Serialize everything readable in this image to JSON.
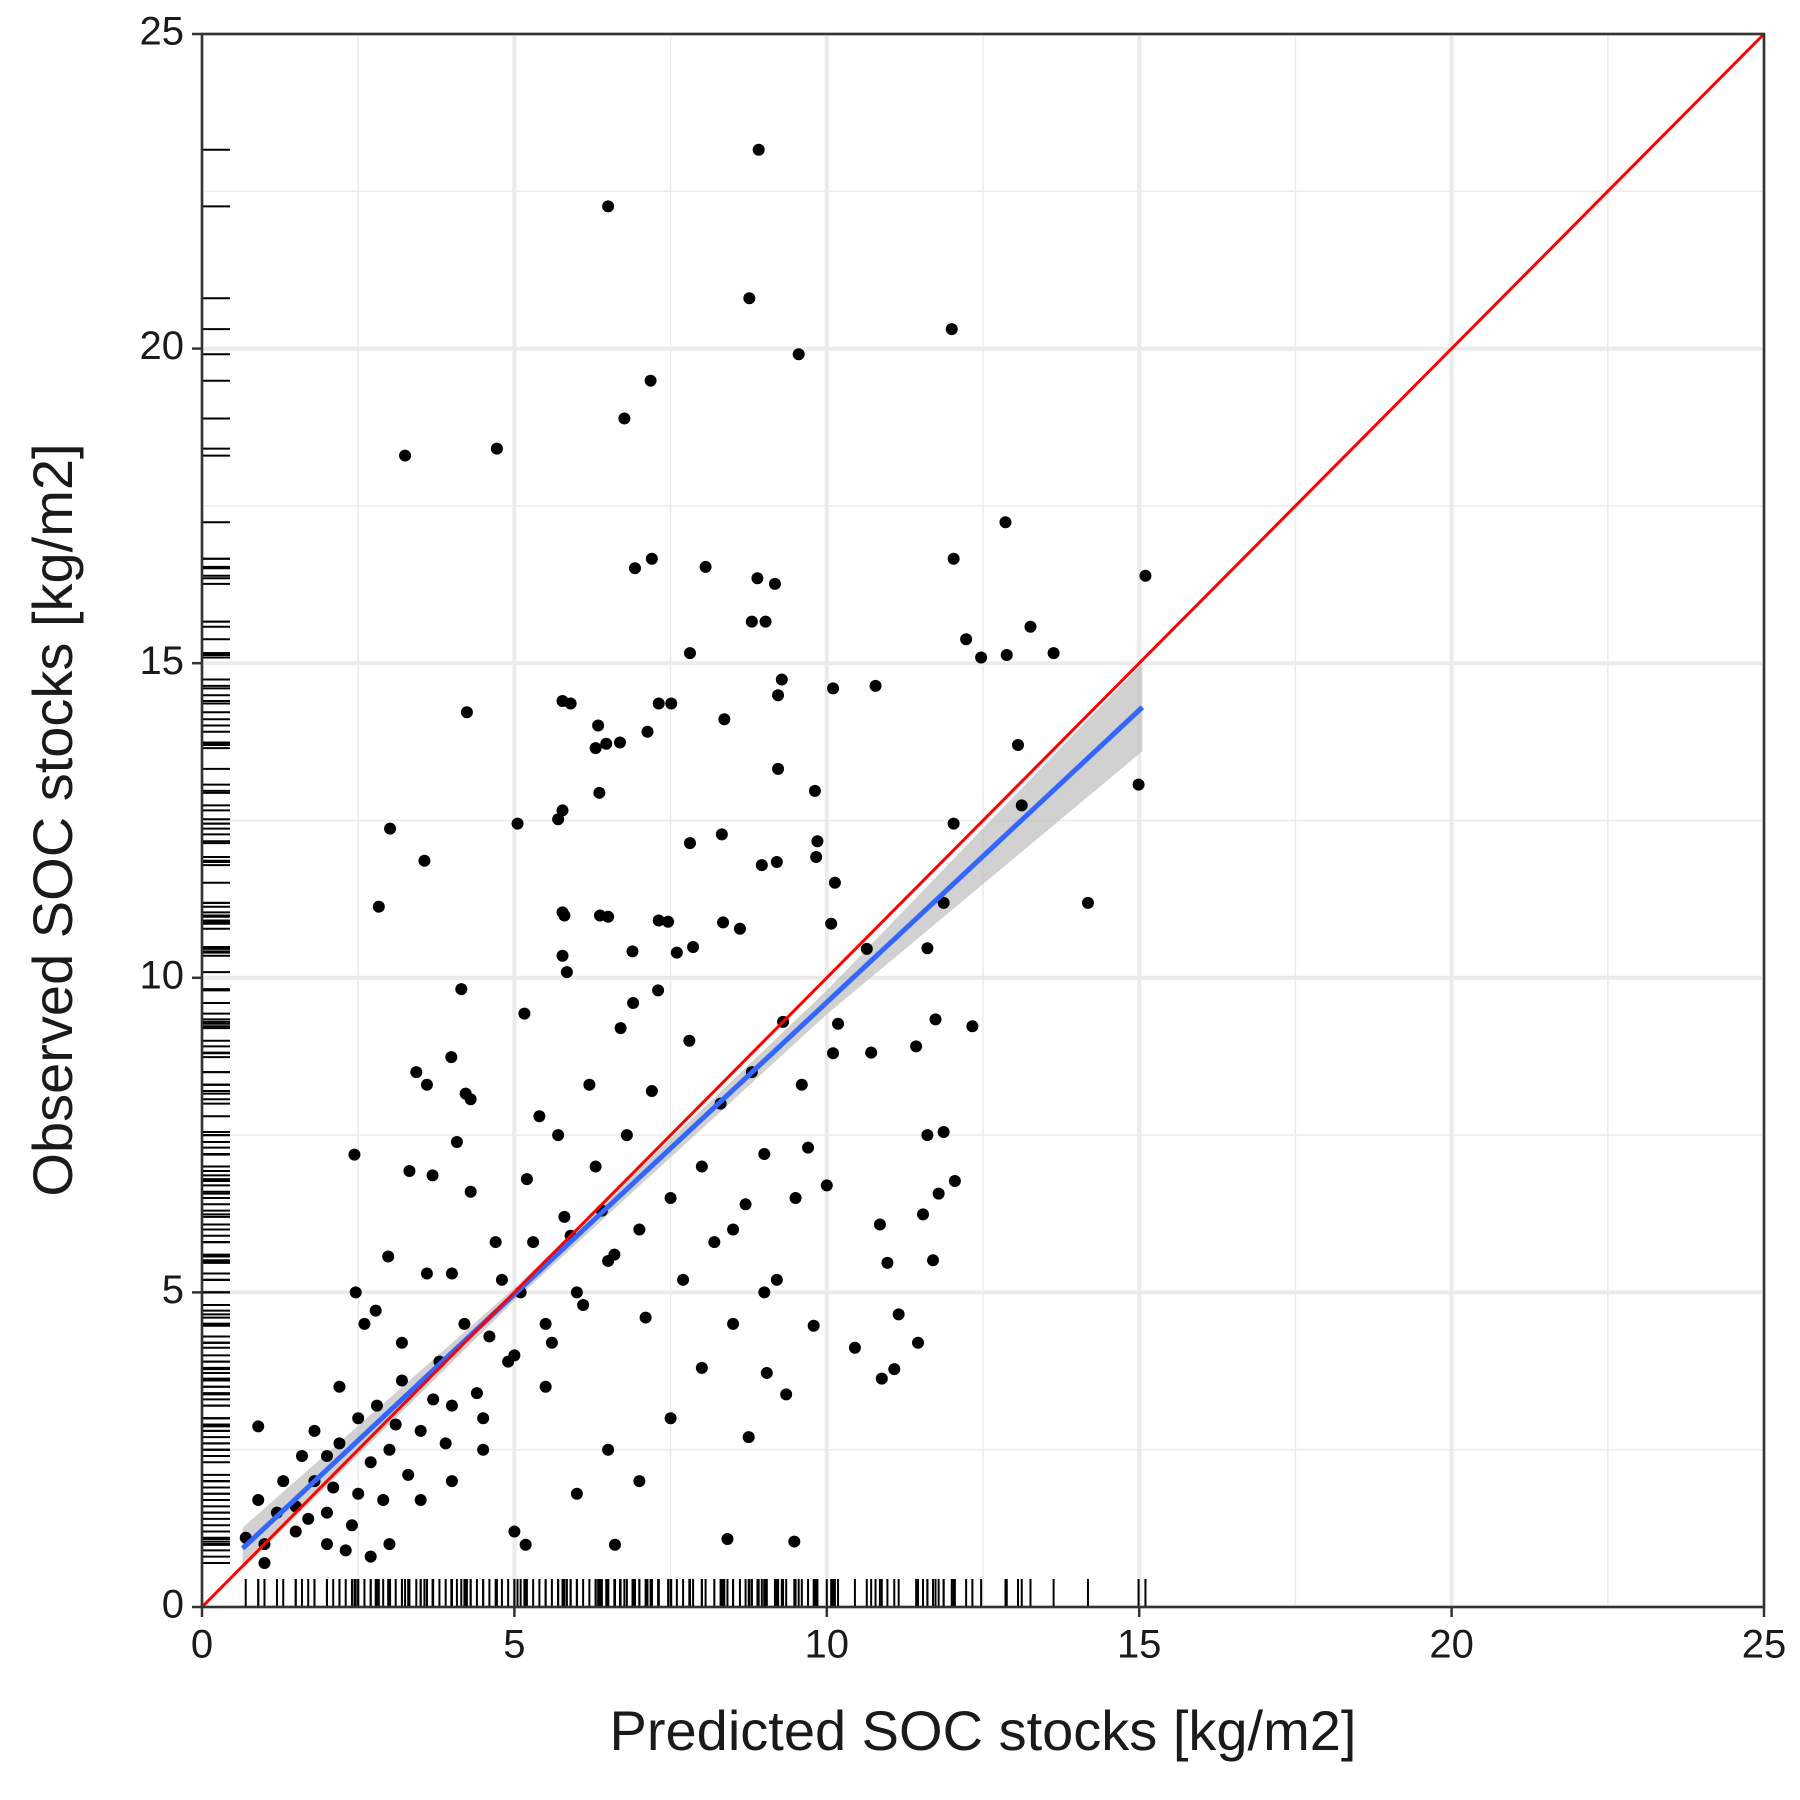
{
  "chart_data": {
    "type": "scatter",
    "x_label": "Predicted SOC stocks [kg/m2]",
    "y_label": "Observed SOC stocks [kg/m2]",
    "xlim": [
      0,
      25
    ],
    "ylim": [
      0,
      25
    ],
    "xticks": [
      0,
      5,
      10,
      15,
      20,
      25
    ],
    "yticks": [
      0,
      5,
      10,
      15,
      20,
      25
    ],
    "x_minor": [
      2.5,
      7.5,
      12.5,
      17.5,
      22.5
    ],
    "y_minor": [
      2.5,
      7.5,
      12.5,
      17.5,
      22.5
    ],
    "grid": true,
    "rug": true,
    "color": "#000000",
    "x": [
      8.91,
      6.5,
      8.76,
      12.0,
      9.55,
      7.18,
      6.76,
      4.72,
      3.25,
      12.86,
      7.2,
      12.03,
      6.93,
      8.06,
      8.89,
      9.17,
      15.1,
      8.8,
      9.02,
      13.26,
      12.23,
      12.47,
      12.88,
      13.63,
      7.81,
      9.28,
      9.22,
      10.1,
      10.78,
      5.77,
      5.9,
      7.31,
      7.51,
      4.24,
      6.34,
      8.36,
      7.13,
      6.3,
      6.47,
      6.69,
      9.22,
      13.06,
      14.99,
      13.12,
      6.36,
      9.81,
      5.77,
      5.7,
      5.05,
      3.01,
      12.03,
      8.32,
      7.81,
      9.85,
      9.83,
      9.2,
      8.96,
      3.56,
      10.13,
      2.83,
      14.18,
      11.87,
      6.37,
      6.5,
      5.77,
      5.8,
      7.31,
      7.46,
      8.34,
      8.61,
      10.07,
      6.89,
      7.86,
      11.61,
      10.64,
      5.77,
      5.84,
      4.15,
      5.16,
      12.33,
      10.18,
      10.71,
      11.43,
      11.74,
      3.99,
      3.43,
      3.6,
      4.22,
      4.3,
      2.44,
      4.08,
      3.32,
      3.69,
      11.87,
      11.61,
      12.05,
      11.79,
      10.85,
      11.54,
      11.7,
      10.97,
      11.15,
      11.46,
      10.45,
      10.88,
      11.08,
      9.79,
      9.35,
      9.04,
      8.75,
      8.41,
      9.48,
      6.61,
      5.18,
      0.9,
      2.78,
      2.98,
      2.46,
      1.0,
      1.2,
      1.5,
      1.8,
      2.0,
      2.2,
      2.5,
      2.0,
      2.3,
      2.7,
      1.6,
      1.3,
      2.8,
      3.0,
      3.2,
      3.5,
      3.8,
      4.0,
      4.2,
      4.5,
      4.8,
      5.0,
      5.3,
      5.5,
      5.8,
      6.0,
      6.3,
      6.5,
      6.8,
      7.0,
      7.2,
      7.5,
      7.8,
      8.0,
      8.3,
      8.5,
      8.8,
      9.0,
      9.3,
      9.5,
      9.7,
      10.0,
      3.0,
      3.5,
      4.0,
      4.5,
      5.0,
      5.5,
      6.0,
      6.5,
      7.0,
      7.5,
      8.0,
      8.5,
      9.0,
      4.3,
      4.7,
      5.2,
      5.7,
      6.2,
      6.7,
      7.3,
      7.6,
      6.9,
      5.4,
      3.6,
      4.0,
      3.2,
      2.6,
      2.2,
      2.5,
      1.8,
      1.5,
      1.0,
      0.7,
      0.9,
      2.0,
      2.4,
      2.9,
      3.3,
      3.9,
      4.4,
      4.9,
      5.6,
      6.1,
      6.6,
      7.1,
      7.7,
      8.2,
      8.7,
      9.2,
      9.6,
      10.1,
      6.4,
      5.9,
      5.1,
      4.6,
      3.7,
      3.1,
      2.7,
      2.1,
      1.7
    ],
    "values": [
      23.16,
      22.26,
      20.8,
      20.31,
      19.91,
      19.49,
      18.89,
      18.41,
      18.3,
      17.24,
      16.66,
      16.66,
      16.51,
      16.53,
      16.35,
      16.26,
      16.39,
      15.66,
      15.66,
      15.58,
      15.38,
      15.09,
      15.13,
      15.16,
      15.16,
      14.74,
      14.49,
      14.6,
      14.64,
      14.4,
      14.36,
      14.36,
      14.36,
      14.22,
      14.01,
      14.11,
      13.91,
      13.65,
      13.72,
      13.74,
      13.32,
      13.7,
      13.07,
      12.74,
      12.94,
      12.97,
      12.66,
      12.52,
      12.45,
      12.37,
      12.45,
      12.28,
      12.14,
      12.17,
      11.92,
      11.84,
      11.79,
      11.86,
      11.51,
      11.13,
      11.19,
      11.19,
      10.99,
      10.97,
      11.04,
      10.99,
      10.91,
      10.89,
      10.88,
      10.78,
      10.86,
      10.42,
      10.49,
      10.47,
      10.46,
      10.35,
      10.09,
      9.82,
      9.43,
      9.23,
      9.27,
      8.81,
      8.91,
      9.34,
      8.74,
      8.5,
      8.3,
      8.16,
      8.07,
      7.19,
      7.39,
      6.93,
      6.86,
      7.55,
      7.5,
      6.77,
      6.57,
      6.08,
      6.24,
      5.51,
      5.47,
      4.65,
      4.2,
      4.12,
      3.63,
      3.78,
      4.47,
      3.38,
      3.72,
      2.7,
      1.08,
      1.04,
      0.99,
      0.99,
      2.87,
      4.71,
      5.57,
      5.0,
      1.0,
      1.5,
      1.2,
      2.0,
      1.5,
      2.6,
      1.8,
      1.0,
      0.9,
      0.8,
      2.4,
      2.0,
      3.2,
      2.5,
      3.6,
      2.8,
      3.9,
      3.2,
      4.5,
      3.0,
      5.2,
      4.0,
      5.8,
      4.5,
      6.2,
      5.0,
      7.0,
      5.5,
      7.5,
      6.0,
      8.2,
      6.5,
      9.0,
      7.0,
      8.0,
      6.0,
      8.5,
      7.2,
      9.3,
      6.5,
      7.3,
      6.7,
      1.0,
      1.7,
      2.0,
      2.5,
      1.2,
      3.5,
      1.8,
      2.5,
      2.0,
      3.0,
      3.8,
      4.5,
      5.0,
      6.6,
      5.8,
      6.8,
      7.5,
      8.3,
      9.2,
      9.8,
      10.4,
      9.6,
      7.8,
      5.3,
      5.3,
      4.2,
      4.5,
      3.5,
      3.0,
      2.8,
      1.6,
      0.7,
      1.1,
      1.7,
      2.4,
      1.3,
      1.7,
      2.1,
      2.6,
      3.4,
      3.9,
      4.2,
      4.8,
      5.6,
      4.6,
      5.2,
      5.8,
      6.4,
      5.2,
      8.3,
      8.8,
      6.3,
      5.9,
      5.0,
      4.3,
      3.3,
      2.9,
      2.3,
      1.9,
      1.4
    ],
    "fit_line": {
      "color": "#3366ff",
      "ci_color": "#bdbdbd",
      "x": [
        0.65,
        5,
        10,
        15.05
      ],
      "y": [
        0.93,
        4.97,
        9.61,
        14.3
      ],
      "ci_lower": [
        0.6,
        4.87,
        9.42,
        13.6
      ],
      "ci_upper": [
        1.26,
        5.07,
        9.8,
        15.0
      ]
    },
    "reference_line": {
      "color": "#ff0000",
      "x": [
        0,
        25
      ],
      "y": [
        0,
        25
      ]
    }
  }
}
